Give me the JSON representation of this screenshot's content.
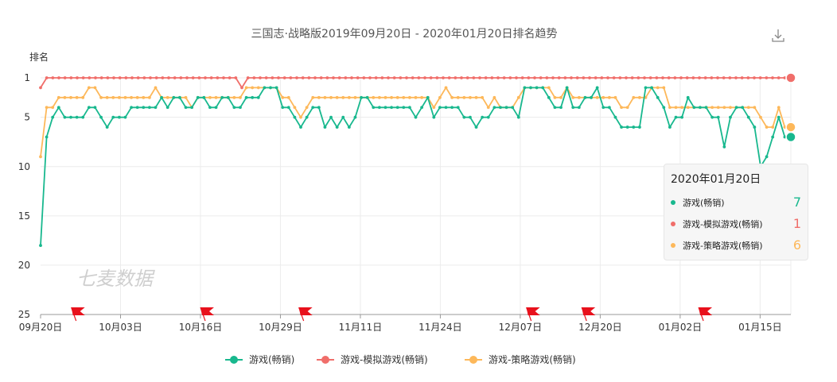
{
  "colors": {
    "series": [
      "#18b88e",
      "#f06e6a",
      "#fdb85a"
    ],
    "axis": "#999999",
    "grid": "#ececec",
    "flag": "#e8111c"
  },
  "chart_data": {
    "type": "line",
    "title": "三国志·战略版2019年09月20日 - 2020年01月20日排名趋势",
    "ylabel": "排名",
    "xlabel": "",
    "y_axis": {
      "inverted": true,
      "range": [
        1,
        25
      ],
      "ticks": [
        "1",
        "5",
        "10",
        "15",
        "20",
        "25"
      ]
    },
    "x_tick_labels": [
      "09月20日",
      "10月03日",
      "10月16日",
      "10月29日",
      "11月11日",
      "11月24日",
      "12月07日",
      "12月20日",
      "01月02日",
      "01月15日"
    ],
    "x_start": "2019-09-20",
    "x_end": "2020-01-20",
    "grid": true,
    "legend_position": "bottom",
    "watermark": "七麦数据",
    "flag_dates": [
      "2019-09-25",
      "2019-10-16",
      "2019-11-01",
      "2019-12-08",
      "2019-12-17",
      "2020-01-05"
    ],
    "series": [
      {
        "name": "游戏(畅销)",
        "values": [
          18,
          7,
          5,
          4,
          5,
          5,
          5,
          5,
          4,
          4,
          5,
          6,
          5,
          5,
          5,
          4,
          4,
          4,
          4,
          4,
          3,
          4,
          3,
          3,
          4,
          4,
          3,
          3,
          4,
          4,
          3,
          3,
          4,
          4,
          3,
          3,
          3,
          2,
          2,
          2,
          4,
          4,
          5,
          6,
          5,
          4,
          4,
          6,
          5,
          6,
          5,
          6,
          5,
          3,
          3,
          4,
          4,
          4,
          4,
          4,
          4,
          4,
          5,
          4,
          3,
          5,
          4,
          4,
          4,
          4,
          5,
          5,
          6,
          5,
          5,
          4,
          4,
          4,
          4,
          5,
          2,
          2,
          2,
          2,
          3,
          4,
          4,
          2,
          4,
          4,
          3,
          3,
          2,
          4,
          4,
          5,
          6,
          6,
          6,
          6,
          2,
          2,
          3,
          4,
          6,
          5,
          5,
          3,
          4,
          4,
          4,
          5,
          5,
          8,
          5,
          4,
          4,
          5,
          6,
          10,
          9,
          7,
          5,
          7,
          7
        ]
      },
      {
        "name": "游戏-模拟游戏(畅销)",
        "values": [
          2,
          1,
          1,
          1,
          1,
          1,
          1,
          1,
          1,
          1,
          1,
          1,
          1,
          1,
          1,
          1,
          1,
          1,
          1,
          1,
          1,
          1,
          1,
          1,
          1,
          1,
          1,
          1,
          1,
          1,
          1,
          1,
          1,
          2,
          1,
          1,
          1,
          1,
          1,
          1,
          1,
          1,
          1,
          1,
          1,
          1,
          1,
          1,
          1,
          1,
          1,
          1,
          1,
          1,
          1,
          1,
          1,
          1,
          1,
          1,
          1,
          1,
          1,
          1,
          1,
          1,
          1,
          1,
          1,
          1,
          1,
          1,
          1,
          1,
          1,
          1,
          1,
          1,
          1,
          1,
          1,
          1,
          1,
          1,
          1,
          1,
          1,
          1,
          1,
          1,
          1,
          1,
          1,
          1,
          1,
          1,
          1,
          1,
          1,
          1,
          1,
          1,
          1,
          1,
          1,
          1,
          1,
          1,
          1,
          1,
          1,
          1,
          1,
          1,
          1,
          1,
          1,
          1,
          1,
          1,
          1,
          1,
          1,
          1
        ]
      },
      {
        "name": "游戏-策略游戏(畅销)",
        "values": [
          9,
          4,
          4,
          3,
          3,
          3,
          3,
          3,
          2,
          2,
          3,
          3,
          3,
          3,
          3,
          3,
          3,
          3,
          3,
          2,
          3,
          3,
          3,
          3,
          3,
          4,
          3,
          3,
          3,
          3,
          3,
          3,
          3,
          3,
          2,
          2,
          2,
          2,
          2,
          2,
          3,
          3,
          4,
          5,
          4,
          3,
          3,
          3,
          3,
          3,
          3,
          3,
          3,
          3,
          3,
          3,
          3,
          3,
          3,
          3,
          3,
          3,
          3,
          3,
          3,
          4,
          3,
          2,
          3,
          3,
          3,
          3,
          3,
          3,
          4,
          3,
          4,
          4,
          4,
          3,
          2,
          2,
          2,
          2,
          2,
          3,
          3,
          2,
          3,
          3,
          3,
          3,
          3,
          3,
          3,
          3,
          4,
          4,
          3,
          3,
          3,
          2,
          2,
          2,
          4,
          4,
          4,
          4,
          4,
          4,
          4,
          4,
          4,
          4,
          4,
          4,
          4,
          4,
          4,
          5,
          6,
          6,
          4,
          6,
          6
        ]
      }
    ]
  },
  "tooltip": {
    "title": "2020年01月20日",
    "rows": [
      {
        "name": "游戏(畅销)",
        "value": "7"
      },
      {
        "name": "游戏-模拟游戏(畅销)",
        "value": "1"
      },
      {
        "name": "游戏-策略游戏(畅销)",
        "value": "6"
      }
    ]
  },
  "toolbar": {
    "download_icon": "download-icon"
  }
}
